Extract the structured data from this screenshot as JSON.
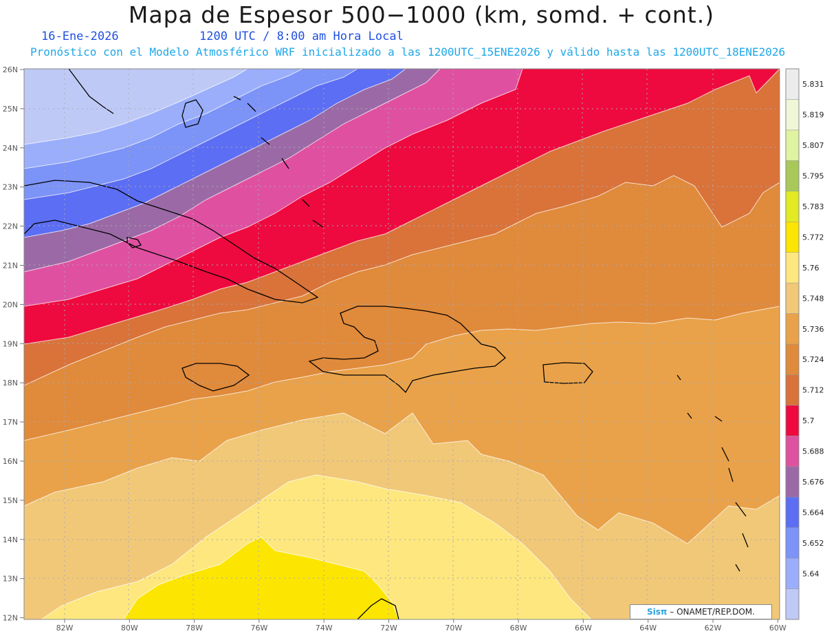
{
  "header": {
    "title": "Mapa de Espesor 500−1000 (km, somd. + cont.)",
    "date": "16-Ene-2026",
    "time": "1200 UTC / 8:00 am Hora Local",
    "forecast": "Pronóstico con el Modelo Atmosférico WRF inicializado a las 1200UTC_15ENE2026 y válido hasta las  1200UTC_18ENE2026"
  },
  "map": {
    "lat_labels": [
      "26N",
      "25N",
      "24N",
      "23N",
      "22N",
      "21N",
      "20N",
      "19N",
      "18N",
      "17N",
      "16N",
      "15N",
      "14N",
      "13N",
      "12N"
    ],
    "lon_labels": [
      "82W",
      "80W",
      "78W",
      "76W",
      "74W",
      "72W",
      "70W",
      "68W",
      "66W",
      "64W",
      "62W",
      "60W"
    ]
  },
  "colorbar": {
    "levels": [
      {
        "label": "",
        "color": "#bfc9f6"
      },
      {
        "label": "5.64",
        "color": "#9aaefb"
      },
      {
        "label": "5.652",
        "color": "#7c93f8"
      },
      {
        "label": "5.664",
        "color": "#5c6ef3"
      },
      {
        "label": "5.676",
        "color": "#9b6aa6"
      },
      {
        "label": "5.688",
        "color": "#e050a0"
      },
      {
        "label": "5.7",
        "color": "#ee0a3e"
      },
      {
        "label": "5.712",
        "color": "#d9733a"
      },
      {
        "label": "5.724",
        "color": "#e08a3b"
      },
      {
        "label": "5.736",
        "color": "#e9a24a"
      },
      {
        "label": "5.748",
        "color": "#f1c878"
      },
      {
        "label": "5.76",
        "color": "#fde77e"
      },
      {
        "label": "5.772",
        "color": "#fce500"
      },
      {
        "label": "5.783",
        "color": "#e2ea22"
      },
      {
        "label": "5.795",
        "color": "#a8c95a"
      },
      {
        "label": "5.807",
        "color": "#dff3a0"
      },
      {
        "label": "5.819",
        "color": "#eff7d8"
      },
      {
        "label": "5.831",
        "color": "#ececec"
      }
    ]
  },
  "credit": {
    "logo": "Sisπ",
    "text": "– ONAMET/REP.DOM."
  }
}
